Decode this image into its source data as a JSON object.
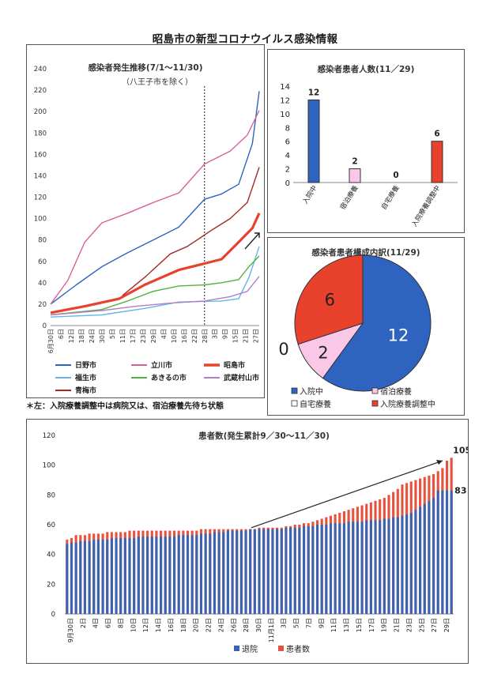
{
  "page_title": "昭島市の新型コロナウイルス感染情報",
  "footnote": "＊左：入院療養調整中は病院又は、宿泊療養先待ち状態",
  "chart_data": [
    {
      "type": "line",
      "title": "感染者発生推移(7/1～11/30)",
      "subtitle": "（八王子市を除く）",
      "ylim": [
        0,
        240
      ],
      "yticks": [
        0,
        20,
        40,
        60,
        80,
        100,
        120,
        140,
        160,
        180,
        200,
        220,
        240
      ],
      "x_tick_labels": [
        "6月30日",
        "6日",
        "12日",
        "18日",
        "24日",
        "30日",
        "5日",
        "11日",
        "17日",
        "23日",
        "29日",
        "4日",
        "10日",
        "16日",
        "22日",
        "28日",
        "3日",
        "9日",
        "15日",
        "21日",
        "27日"
      ],
      "x_tick_days": [
        0,
        6,
        12,
        18,
        24,
        30,
        36,
        42,
        48,
        54,
        60,
        66,
        72,
        78,
        84,
        90,
        96,
        102,
        108,
        114,
        120
      ],
      "x_range_days": [
        0,
        122
      ],
      "vline_day": 90,
      "series": [
        {
          "name": "日野市",
          "color": "#2e63c0",
          "width": 1.4,
          "points": [
            [
              0,
              20
            ],
            [
              15,
              38
            ],
            [
              30,
              55
            ],
            [
              45,
              68
            ],
            [
              60,
              80
            ],
            [
              75,
              92
            ],
            [
              90,
              118
            ],
            [
              100,
              123
            ],
            [
              110,
              132
            ],
            [
              118,
              170
            ],
            [
              122,
              219
            ]
          ]
        },
        {
          "name": "立川市",
          "color": "#d9609c",
          "width": 1.4,
          "points": [
            [
              0,
              20
            ],
            [
              10,
              42
            ],
            [
              20,
              78
            ],
            [
              30,
              96
            ],
            [
              45,
              105
            ],
            [
              60,
              115
            ],
            [
              75,
              124
            ],
            [
              90,
              151
            ],
            [
              105,
              163
            ],
            [
              115,
              178
            ],
            [
              122,
              201
            ]
          ]
        },
        {
          "name": "昭島市",
          "color": "#e8412c",
          "width": 3.2,
          "points": [
            [
              0,
              12
            ],
            [
              20,
              18
            ],
            [
              40,
              25
            ],
            [
              55,
              38
            ],
            [
              62,
              43
            ],
            [
              75,
              52
            ],
            [
              90,
              58
            ],
            [
              100,
              62
            ],
            [
              110,
              78
            ],
            [
              118,
              91
            ],
            [
              122,
              105
            ]
          ]
        },
        {
          "name": "福生市",
          "color": "#5fb8e8",
          "width": 1.4,
          "points": [
            [
              0,
              8
            ],
            [
              30,
              10
            ],
            [
              55,
              16
            ],
            [
              75,
              22
            ],
            [
              100,
              23
            ],
            [
              110,
              25
            ],
            [
              116,
              45
            ],
            [
              122,
              74
            ]
          ]
        },
        {
          "name": "あきるの市",
          "color": "#55b040",
          "width": 1.4,
          "points": [
            [
              0,
              10
            ],
            [
              30,
              15
            ],
            [
              45,
              23
            ],
            [
              60,
              32
            ],
            [
              75,
              37
            ],
            [
              90,
              38
            ],
            [
              100,
              40
            ],
            [
              110,
              43
            ],
            [
              116,
              55
            ],
            [
              122,
              65
            ]
          ]
        },
        {
          "name": "武蔵村山市",
          "color": "#b07fc8",
          "width": 1.4,
          "points": [
            [
              0,
              10
            ],
            [
              30,
              14
            ],
            [
              50,
              18
            ],
            [
              70,
              21
            ],
            [
              90,
              23
            ],
            [
              105,
              27
            ],
            [
              115,
              32
            ],
            [
              122,
              46
            ]
          ]
        },
        {
          "name": "青梅市",
          "color": "#a52a2a",
          "width": 1.4,
          "points": [
            [
              42,
              28
            ],
            [
              55,
              45
            ],
            [
              70,
              67
            ],
            [
              80,
              74
            ],
            [
              95,
              90
            ],
            [
              105,
              100
            ],
            [
              115,
              115
            ],
            [
              122,
              148
            ]
          ]
        }
      ],
      "legend_rows": [
        [
          "日野市",
          "立川市",
          "昭島市"
        ],
        [
          "福生市",
          "あきるの市",
          "武蔵村山市"
        ],
        [
          "青梅市"
        ]
      ]
    },
    {
      "type": "bar",
      "title": "感染者患者人数(11／29)",
      "categories": [
        "入院中",
        "宿泊療養",
        "自宅療養",
        "入院療養調整中"
      ],
      "values": [
        12,
        2,
        0,
        6
      ],
      "colors": [
        "#2e63c0",
        "#f9c8e6",
        "#ffffff",
        "#e8412c"
      ],
      "ylim": [
        0,
        14
      ],
      "yticks": [
        0,
        2,
        4,
        6,
        8,
        10,
        12,
        14
      ]
    },
    {
      "type": "pie",
      "title": "感染者患者構成内訳(11/29)",
      "labels": [
        "入院中",
        "宿泊療養",
        "自宅療養",
        "入院療養調整中"
      ],
      "values": [
        12,
        2,
        0,
        6
      ],
      "colors": [
        "#2e63c0",
        "#f9c8e6",
        "#ffffff",
        "#e8412c"
      ],
      "legend_rows": [
        [
          "入院中",
          "宿泊療養"
        ],
        [
          "自宅療養",
          "入院療養調整中"
        ]
      ]
    },
    {
      "type": "bar",
      "title": "患者数(発生累計9／30～11／30)",
      "ylim": [
        0,
        120
      ],
      "yticks": [
        0,
        20,
        40,
        60,
        80,
        100,
        120
      ],
      "x_tick_labels": [
        "9月30日",
        "2日",
        "4日",
        "6日",
        "8日",
        "10日",
        "12日",
        "14日",
        "16日",
        "18日",
        "20日",
        "22日",
        "24日",
        "26日",
        "28日",
        "30日",
        "11月1日",
        "3日",
        "5日",
        "7日",
        "9日",
        "11日",
        "13日",
        "15日",
        "17日",
        "19日",
        "21日",
        "23日",
        "25日",
        "27日",
        "29日"
      ],
      "series": [
        {
          "name": "退院",
          "color": "#3a64b3",
          "values": [
            47,
            48,
            48,
            49,
            49,
            49,
            50,
            50,
            50,
            50,
            51,
            51,
            51,
            51,
            51,
            51,
            52,
            52,
            52,
            52,
            52,
            52,
            52,
            52,
            52,
            53,
            53,
            53,
            53,
            53,
            54,
            54,
            54,
            55,
            55,
            55,
            56,
            56,
            56,
            56,
            56,
            57,
            57,
            57,
            57,
            57,
            57,
            57,
            57,
            58,
            58,
            58,
            58,
            59,
            59,
            59,
            60,
            60,
            60,
            61,
            61,
            61,
            61,
            62,
            62,
            62,
            62,
            63,
            63,
            63,
            63,
            64,
            64,
            65,
            65,
            66,
            67,
            68,
            70,
            72,
            74,
            76,
            78,
            83,
            83,
            83,
            83
          ]
        },
        {
          "name": "患者数",
          "color": "#e8523c",
          "values": [
            50,
            51,
            53,
            53,
            53,
            54,
            54,
            54,
            54,
            55,
            55,
            55,
            55,
            55,
            56,
            56,
            56,
            56,
            56,
            56,
            56,
            56,
            56,
            56,
            56,
            56,
            56,
            56,
            56,
            56,
            57,
            57,
            57,
            57,
            57,
            57,
            57,
            57,
            57,
            57,
            57,
            57,
            57,
            58,
            58,
            58,
            58,
            58,
            58,
            59,
            59,
            60,
            60,
            61,
            61,
            62,
            63,
            64,
            65,
            66,
            67,
            68,
            69,
            70,
            71,
            72,
            73,
            74,
            75,
            76,
            77,
            78,
            80,
            82,
            84,
            87,
            88,
            89,
            90,
            91,
            92,
            93,
            94,
            96,
            98,
            103,
            105
          ]
        }
      ],
      "annotations": [
        {
          "text": "105"
        },
        {
          "text": "83"
        }
      ]
    }
  ],
  "colors": {
    "hospital": "#2e63c0",
    "hotel": "#f9c8e6",
    "home": "#ffffff",
    "waiting": "#e8412c",
    "discharged": "#3a64b3",
    "patients": "#e8523c"
  }
}
